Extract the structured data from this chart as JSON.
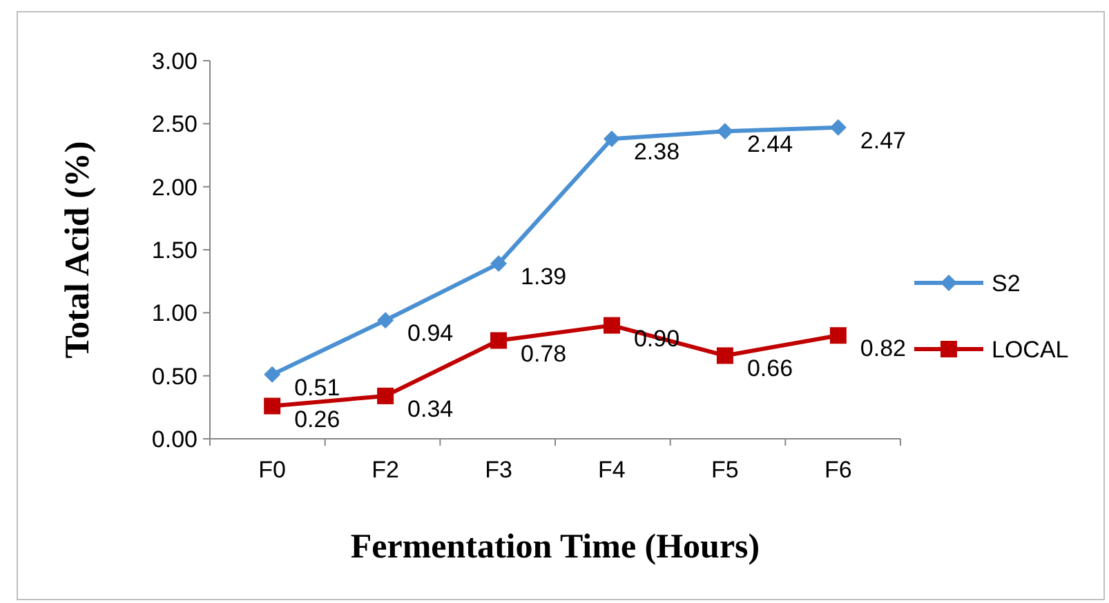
{
  "chart_data": {
    "type": "line",
    "xlabel": "Fermentation Time (Hours)",
    "ylabel": "Total Acid (%)",
    "categories": [
      "F0",
      "F2",
      "F3",
      "F4",
      "F5",
      "F6"
    ],
    "series": [
      {
        "name": "S2",
        "color": "#4a90d2",
        "marker": "diamond",
        "values": [
          0.51,
          0.94,
          1.39,
          2.38,
          2.44,
          2.47
        ],
        "value_labels": [
          "0.51",
          "0.94",
          "1.39",
          "2.38",
          "2.44",
          "2.47"
        ]
      },
      {
        "name": "LOCAL",
        "color": "#c00000",
        "marker": "square",
        "values": [
          0.26,
          0.34,
          0.78,
          0.9,
          0.66,
          0.82
        ],
        "value_labels": [
          "0.26",
          "0.34",
          "0.78",
          "0.90",
          "0.66",
          "0.82"
        ]
      }
    ],
    "ylim": [
      0,
      3
    ],
    "yticks": [
      {
        "value": 0,
        "label": "0.00"
      },
      {
        "value": 0.5,
        "label": "0.50"
      },
      {
        "value": 1,
        "label": "1.00"
      },
      {
        "value": 1.5,
        "label": "1.50"
      },
      {
        "value": 2,
        "label": "2.00"
      },
      {
        "value": 2.5,
        "label": "2.50"
      },
      {
        "value": 3,
        "label": "3.00"
      }
    ],
    "grid": false,
    "legend": "right",
    "line_style": "solid"
  }
}
